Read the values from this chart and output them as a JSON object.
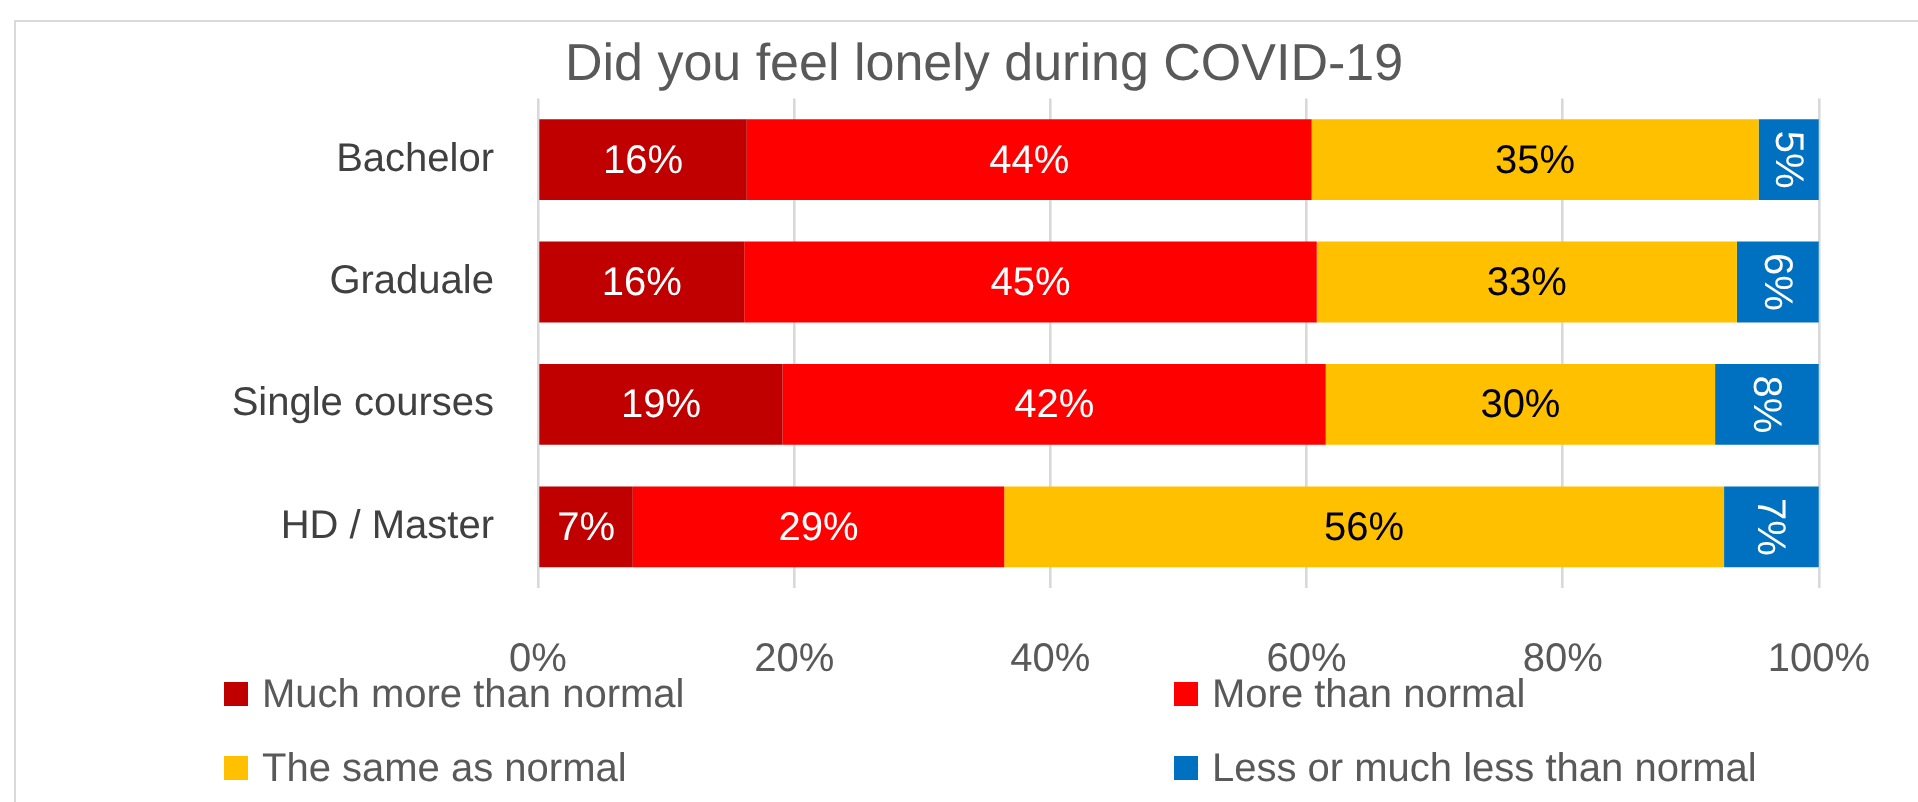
{
  "chart_data": {
    "type": "bar",
    "orientation": "horizontal",
    "stacked": true,
    "title": "Did you feel lonely during COVID-19",
    "categories": [
      "Bachelor",
      "Graduale",
      "Single courses",
      "HD / Master"
    ],
    "series": [
      {
        "name": "Much more than normal",
        "color": "#c00000",
        "values": [
          16.3,
          16.1,
          19.1,
          7.4
        ],
        "value_labels": [
          "16%",
          "16%",
          "19%",
          "7%"
        ]
      },
      {
        "name": "More than normal",
        "color": "#ff0000",
        "values": [
          44.1,
          44.7,
          42.4,
          29.0
        ],
        "value_labels": [
          "44%",
          "45%",
          "42%",
          "29%"
        ]
      },
      {
        "name": "The same as normal",
        "color": "#ffc000",
        "values": [
          34.9,
          32.8,
          30.4,
          56.2
        ],
        "value_labels": [
          "35%",
          "33%",
          "30%",
          "56%"
        ]
      },
      {
        "name": "Less or much less than normal",
        "color": "#0070c0",
        "values": [
          4.7,
          6.4,
          8.1,
          7.4
        ],
        "value_labels": [
          "5%",
          "6%",
          "8%",
          "7%"
        ]
      }
    ],
    "xlim": [
      0,
      100
    ],
    "xticks": [
      {
        "value": 0,
        "label": "0%"
      },
      {
        "value": 20,
        "label": "20%"
      },
      {
        "value": 40,
        "label": "40%"
      },
      {
        "value": 60,
        "label": "60%"
      },
      {
        "value": 80,
        "label": "80%"
      },
      {
        "value": 100,
        "label": "100%"
      }
    ],
    "grid": "x",
    "legend": "bottom"
  }
}
